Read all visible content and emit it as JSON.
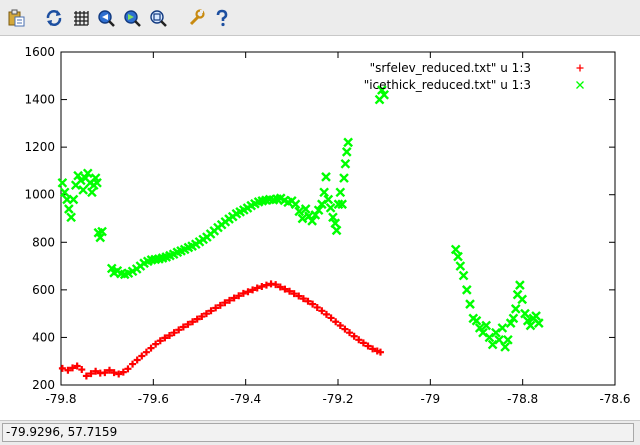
{
  "toolbar": {
    "buttons": [
      {
        "icon": "copy-clipboard-icon"
      },
      {
        "icon": "replot-icon"
      },
      {
        "icon": "grid-icon"
      },
      {
        "icon": "zoom-previous-icon"
      },
      {
        "icon": "zoom-next-icon"
      },
      {
        "icon": "zoom-unzoom-icon"
      },
      {
        "icon": "options-wrench-icon"
      },
      {
        "icon": "help-icon"
      }
    ]
  },
  "status": {
    "coordinates": "-79.9296,  57.7159"
  },
  "chart_data": {
    "type": "scatter",
    "xlim": [
      -79.8,
      -78.6
    ],
    "ylim": [
      200,
      1600
    ],
    "xticks": [
      -79.8,
      -79.6,
      -79.4,
      -79.2,
      -79.0,
      -78.8,
      -78.6
    ],
    "xtick_labels": [
      "-79.8",
      "-79.6",
      "-79.4",
      "-79.2",
      "-79",
      "-78.8",
      "-78.6"
    ],
    "yticks": [
      200,
      400,
      600,
      800,
      1000,
      1200,
      1400,
      1600
    ],
    "ytick_labels": [
      "200",
      "400",
      "600",
      "800",
      "1000",
      "1200",
      "1400",
      "1600"
    ],
    "grid": false,
    "legend_position": "top-right",
    "series": [
      {
        "name": "\"srfelev_reduced.txt\" u 1:3",
        "marker": "+",
        "color": "#ff0000",
        "points": [
          [
            -79.797,
            270
          ],
          [
            -79.785,
            262
          ],
          [
            -79.775,
            272
          ],
          [
            -79.765,
            280
          ],
          [
            -79.755,
            265
          ],
          [
            -79.745,
            238
          ],
          [
            -79.735,
            248
          ],
          [
            -79.725,
            258
          ],
          [
            -79.715,
            250
          ],
          [
            -79.705,
            252
          ],
          [
            -79.695,
            262
          ],
          [
            -79.685,
            252
          ],
          [
            -79.675,
            246
          ],
          [
            -79.665,
            254
          ],
          [
            -79.655,
            268
          ],
          [
            -79.645,
            288
          ],
          [
            -79.635,
            305
          ],
          [
            -79.625,
            322
          ],
          [
            -79.615,
            338
          ],
          [
            -79.605,
            355
          ],
          [
            -79.595,
            372
          ],
          [
            -79.585,
            386
          ],
          [
            -79.575,
            398
          ],
          [
            -79.565,
            408
          ],
          [
            -79.555,
            420
          ],
          [
            -79.545,
            432
          ],
          [
            -79.535,
            444
          ],
          [
            -79.525,
            455
          ],
          [
            -79.515,
            466
          ],
          [
            -79.505,
            477
          ],
          [
            -79.495,
            488
          ],
          [
            -79.485,
            500
          ],
          [
            -79.475,
            512
          ],
          [
            -79.465,
            524
          ],
          [
            -79.455,
            535
          ],
          [
            -79.445,
            546
          ],
          [
            -79.435,
            556
          ],
          [
            -79.425,
            566
          ],
          [
            -79.415,
            575
          ],
          [
            -79.405,
            585
          ],
          [
            -79.395,
            592
          ],
          [
            -79.385,
            600
          ],
          [
            -79.375,
            608
          ],
          [
            -79.365,
            614
          ],
          [
            -79.355,
            620
          ],
          [
            -79.345,
            625
          ],
          [
            -79.335,
            622
          ],
          [
            -79.325,
            612
          ],
          [
            -79.315,
            603
          ],
          [
            -79.305,
            594
          ],
          [
            -79.295,
            584
          ],
          [
            -79.285,
            574
          ],
          [
            -79.275,
            563
          ],
          [
            -79.265,
            552
          ],
          [
            -79.255,
            540
          ],
          [
            -79.245,
            526
          ],
          [
            -79.235,
            512
          ],
          [
            -79.225,
            497
          ],
          [
            -79.215,
            482
          ],
          [
            -79.205,
            466
          ],
          [
            -79.195,
            450
          ],
          [
            -79.185,
            435
          ],
          [
            -79.175,
            420
          ],
          [
            -79.165,
            405
          ],
          [
            -79.155,
            390
          ],
          [
            -79.145,
            377
          ],
          [
            -79.135,
            364
          ],
          [
            -79.125,
            352
          ],
          [
            -79.115,
            343
          ],
          [
            -79.108,
            338
          ]
        ]
      },
      {
        "name": "\"icethick_reduced.txt\" u 1:3",
        "marker": "x",
        "color": "#00ff00",
        "points": [
          [
            -79.797,
            1050
          ],
          [
            -79.792,
            1010
          ],
          [
            -79.787,
            980
          ],
          [
            -79.783,
            940
          ],
          [
            -79.778,
            905
          ],
          [
            -79.773,
            980
          ],
          [
            -79.768,
            1040
          ],
          [
            -79.763,
            1080
          ],
          [
            -79.757,
            1060
          ],
          [
            -79.752,
            1020
          ],
          [
            -79.747,
            1070
          ],
          [
            -79.742,
            1090
          ],
          [
            -79.737,
            1050
          ],
          [
            -79.733,
            1010
          ],
          [
            -79.729,
            1040
          ],
          [
            -79.725,
            1070
          ],
          [
            -79.722,
            1050
          ],
          [
            -79.719,
            840
          ],
          [
            -79.715,
            820
          ],
          [
            -79.711,
            845
          ],
          [
            -79.69,
            690
          ],
          [
            -79.685,
            672
          ],
          [
            -79.678,
            680
          ],
          [
            -79.67,
            668
          ],
          [
            -79.662,
            665
          ],
          [
            -79.654,
            670
          ],
          [
            -79.645,
            678
          ],
          [
            -79.636,
            688
          ],
          [
            -79.628,
            700
          ],
          [
            -79.62,
            712
          ],
          [
            -79.612,
            720
          ],
          [
            -79.604,
            726
          ],
          [
            -79.596,
            728
          ],
          [
            -79.588,
            730
          ],
          [
            -79.58,
            734
          ],
          [
            -79.572,
            738
          ],
          [
            -79.564,
            744
          ],
          [
            -79.556,
            750
          ],
          [
            -79.548,
            758
          ],
          [
            -79.54,
            764
          ],
          [
            -79.532,
            770
          ],
          [
            -79.524,
            778
          ],
          [
            -79.516,
            784
          ],
          [
            -79.508,
            792
          ],
          [
            -79.5,
            802
          ],
          [
            -79.492,
            812
          ],
          [
            -79.484,
            822
          ],
          [
            -79.476,
            835
          ],
          [
            -79.468,
            848
          ],
          [
            -79.46,
            862
          ],
          [
            -79.452,
            874
          ],
          [
            -79.444,
            886
          ],
          [
            -79.436,
            898
          ],
          [
            -79.428,
            908
          ],
          [
            -79.42,
            920
          ],
          [
            -79.412,
            928
          ],
          [
            -79.404,
            936
          ],
          [
            -79.396,
            944
          ],
          [
            -79.388,
            954
          ],
          [
            -79.38,
            962
          ],
          [
            -79.372,
            970
          ],
          [
            -79.364,
            974
          ],
          [
            -79.356,
            977
          ],
          [
            -79.348,
            980
          ],
          [
            -79.34,
            978
          ],
          [
            -79.332,
            982
          ],
          [
            -79.324,
            985
          ],
          [
            -79.316,
            976
          ],
          [
            -79.308,
            968
          ],
          [
            -79.3,
            974
          ],
          [
            -79.292,
            960
          ],
          [
            -79.284,
            930
          ],
          [
            -79.277,
            900
          ],
          [
            -79.27,
            940
          ],
          [
            -79.263,
            910
          ],
          [
            -79.256,
            890
          ],
          [
            -79.249,
            915
          ],
          [
            -79.242,
            935
          ],
          [
            -79.235,
            960
          ],
          [
            -79.23,
            1010
          ],
          [
            -79.226,
            1075
          ],
          [
            -79.221,
            980
          ],
          [
            -79.216,
            945
          ],
          [
            -79.211,
            905
          ],
          [
            -79.206,
            880
          ],
          [
            -79.203,
            850
          ],
          [
            -79.199,
            960
          ],
          [
            -79.195,
            1010
          ],
          [
            -79.191,
            960
          ],
          [
            -79.187,
            1070
          ],
          [
            -79.184,
            1130
          ],
          [
            -79.181,
            1180
          ],
          [
            -79.178,
            1220
          ],
          [
            -79.11,
            1400
          ],
          [
            -79.105,
            1440
          ],
          [
            -79.1,
            1420
          ],
          [
            -78.945,
            770
          ],
          [
            -78.94,
            740
          ],
          [
            -78.935,
            700
          ],
          [
            -78.928,
            660
          ],
          [
            -78.921,
            600
          ],
          [
            -78.914,
            540
          ],
          [
            -78.907,
            480
          ],
          [
            -78.9,
            470
          ],
          [
            -78.893,
            440
          ],
          [
            -78.886,
            420
          ],
          [
            -78.879,
            450
          ],
          [
            -78.872,
            400
          ],
          [
            -78.865,
            370
          ],
          [
            -78.858,
            420
          ],
          [
            -78.851,
            390
          ],
          [
            -78.844,
            440
          ],
          [
            -78.838,
            360
          ],
          [
            -78.832,
            390
          ],
          [
            -78.826,
            460
          ],
          [
            -78.82,
            480
          ],
          [
            -78.815,
            520
          ],
          [
            -78.811,
            580
          ],
          [
            -78.806,
            620
          ],
          [
            -78.801,
            560
          ],
          [
            -78.795,
            500
          ],
          [
            -78.789,
            470
          ],
          [
            -78.783,
            450
          ],
          [
            -78.777,
            480
          ],
          [
            -78.771,
            490
          ],
          [
            -78.765,
            460
          ]
        ]
      }
    ]
  }
}
